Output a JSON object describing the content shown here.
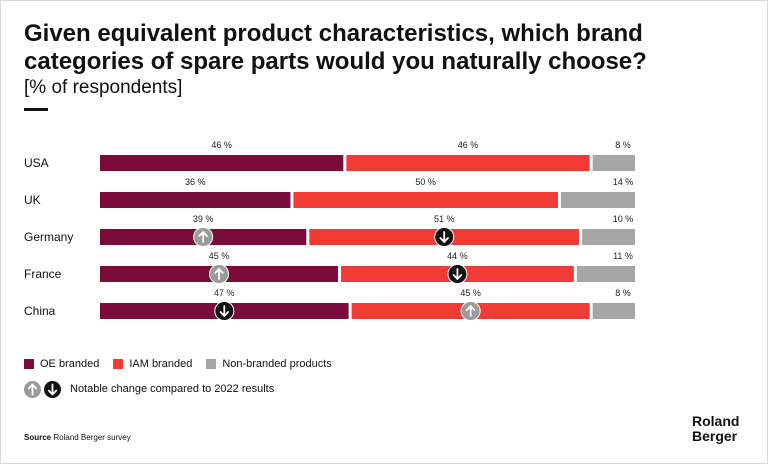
{
  "title": "Given equivalent product characteristics, which brand categories of spare parts would you naturally choose?",
  "subtitle": "[% of respondents]",
  "chart_data": {
    "type": "bar",
    "stacked": true,
    "orientation": "horizontal",
    "categories": [
      "USA",
      "UK",
      "Germany",
      "France",
      "China"
    ],
    "series": [
      {
        "name": "OE branded",
        "color": "#7a0c3b",
        "values": [
          46,
          36,
          39,
          45,
          47
        ]
      },
      {
        "name": "IAM branded",
        "color": "#f23b35",
        "values": [
          46,
          50,
          51,
          44,
          45
        ]
      },
      {
        "name": "Non-branded products",
        "color": "#a6a6a6",
        "values": [
          8,
          14,
          10,
          11,
          8
        ]
      }
    ],
    "data_label_suffix": " %",
    "change_markers": [
      {
        "category": "Germany",
        "series": "OE branded",
        "direction": "up"
      },
      {
        "category": "Germany",
        "series": "IAM branded",
        "direction": "down"
      },
      {
        "category": "France",
        "series": "OE branded",
        "direction": "up"
      },
      {
        "category": "France",
        "series": "IAM branded",
        "direction": "down"
      },
      {
        "category": "China",
        "series": "OE branded",
        "direction": "down"
      },
      {
        "category": "China",
        "series": "IAM branded",
        "direction": "up"
      }
    ],
    "marker_colors": {
      "up": "#9b9b9b",
      "down": "#111111"
    }
  },
  "note": {
    "label": "Notable change compared to 2022 results",
    "icons": [
      "arrow-up-circle-icon",
      "arrow-down-circle-icon"
    ]
  },
  "source": {
    "prefix": "Source",
    "text": "Roland Berger survey"
  },
  "logo": {
    "line1": "Roland",
    "line2": "Berger"
  }
}
